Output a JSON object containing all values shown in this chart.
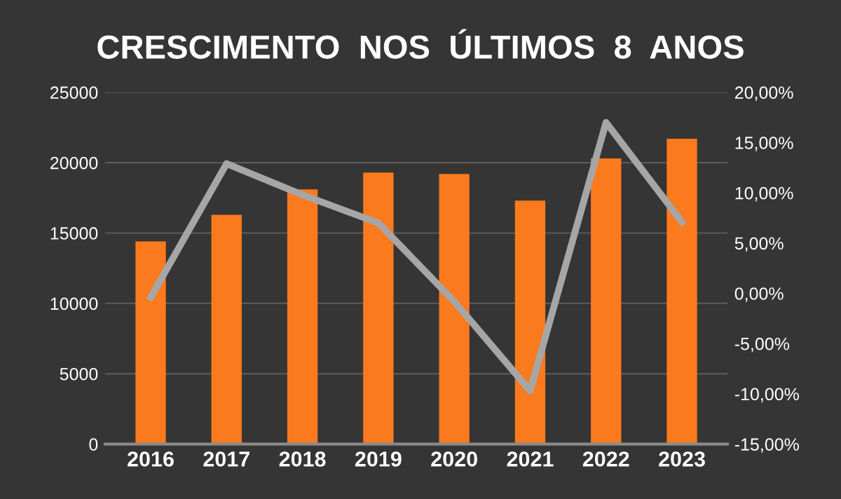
{
  "chart_data": {
    "type": "bar",
    "title": "CRESCIMENTO  NOS  ÚLTIMOS  8  ANOS",
    "categories": [
      "2016",
      "2017",
      "2018",
      "2019",
      "2020",
      "2021",
      "2022",
      "2023"
    ],
    "series": [
      {
        "color": "#fb7a1e",
        "values": [
          14400,
          16300,
          18100,
          19300,
          19200,
          17300,
          20300,
          21700
        ]
      },
      {
        "type": "line",
        "axis": "y2",
        "color": "#a6a6a6",
        "values": [
          -0.4,
          12.9,
          9.8,
          7.0,
          -0.8,
          -9.7,
          17.0,
          7.1
        ]
      }
    ],
    "ylim": [
      0,
      25000
    ],
    "yticks": [
      0,
      5000,
      10000,
      15000,
      20000,
      25000
    ],
    "y2lim": [
      -15,
      20
    ],
    "y2ticks": [
      {
        "value": -15,
        "label": "-15,00%"
      },
      {
        "value": -10,
        "label": "-10,00%"
      },
      {
        "value": -5,
        "label": "-5,00%"
      },
      {
        "value": 0,
        "label": "0,00%"
      },
      {
        "value": 5,
        "label": "5,00%"
      },
      {
        "value": 10,
        "label": "10,00%"
      },
      {
        "value": 15,
        "label": "15,00%"
      },
      {
        "value": 20,
        "label": "20,00%"
      }
    ],
    "grid": "y",
    "line_style": "solid"
  }
}
